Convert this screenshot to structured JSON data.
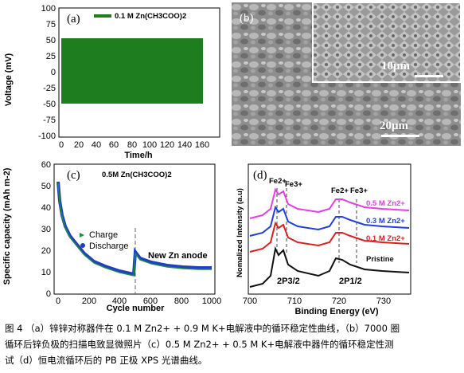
{
  "figure": {
    "panel_a": {
      "label": "(a)",
      "legend": "0.1 M Zn(CH3COO)2",
      "xlabel": "Time/h",
      "ylabel": "Voltage (mV)",
      "x_ticks": [
        "0",
        "20",
        "40",
        "60",
        "80",
        "100",
        "120",
        "140",
        "160"
      ],
      "y_ticks": [
        "100",
        "75",
        "50",
        "25",
        "0",
        "-25",
        "-50",
        "-75",
        "-100"
      ],
      "series_color": "#1e7d1e"
    },
    "panel_b": {
      "label": "(b)",
      "scale_main": "20μm",
      "scale_inset": "10μm"
    },
    "panel_c": {
      "label": "(c)",
      "legend": "0.5M Zn(CH3COO)2",
      "legend_charge": "Charge",
      "legend_discharge": "Discharge",
      "annotation": "New Zn anode",
      "xlabel": "Cycle number",
      "ylabel": "Specific capacity (mAh m-2)",
      "x_ticks": [
        "0",
        "200",
        "400",
        "600",
        "800",
        "1000"
      ],
      "y_ticks": [
        "60",
        "50",
        "40",
        "30",
        "20",
        "10",
        "0"
      ],
      "charge_color": "#1e8f3a",
      "discharge_color": "#1f3fc4"
    },
    "panel_d": {
      "label": "(d)",
      "xlabel": "Binding Energy (eV)",
      "ylabel": "Nomalized Intensity (a.u)",
      "x_ticks": [
        "700",
        "710",
        "720",
        "730"
      ],
      "peaks": [
        "Fe2+",
        "Fe3+",
        "Fe2+",
        "Fe3+"
      ],
      "regions": [
        "2P3/2",
        "2P1/2"
      ],
      "series": [
        {
          "name": "0.5 M Zn2+",
          "color": "#e83ce8"
        },
        {
          "name": "0.3 M Zn2+",
          "color": "#1f3fe0"
        },
        {
          "name": "0.1 M Zn2+",
          "color": "#e02020"
        },
        {
          "name": "Pristine",
          "color": "#111111"
        }
      ]
    }
  },
  "caption": {
    "line1": "图 4 （a）锌锌对称器件在 0.1 M Zn2+ + 0.9 M K+电解液中的循环稳定性曲线，（b）7000 圈",
    "line2": "循环后锌负极的扫描电致显微照片（c）0.5 M Zn2+ + 0.5 M K+电解液中器件的循环稳定性测",
    "line3": "试（d）恒电流循环后的 PB 正极 XPS 光谱曲线。"
  }
}
